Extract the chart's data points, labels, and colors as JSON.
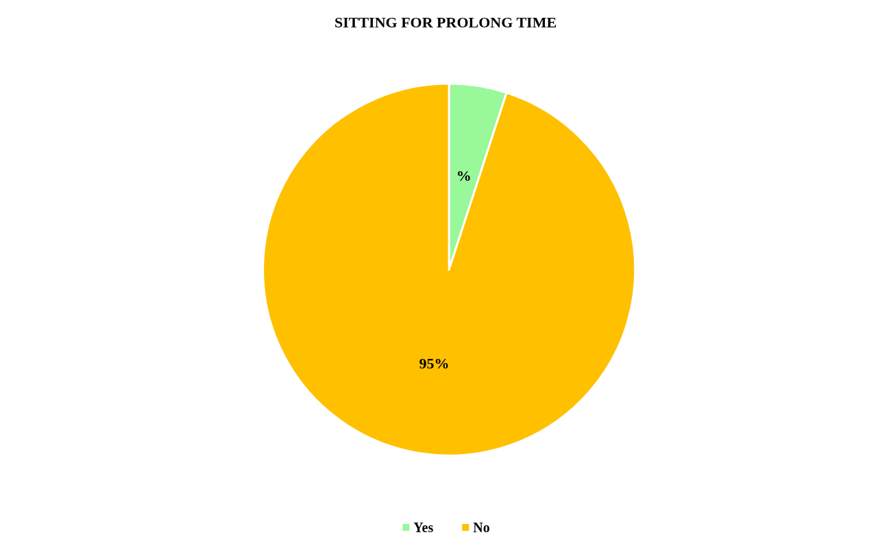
{
  "chart_data": {
    "type": "pie",
    "title": "SITTING FOR PROLONG TIME",
    "categories": [
      "Yes",
      "No"
    ],
    "values": [
      5,
      95
    ],
    "colors": [
      "#99f89a",
      "#ffc000"
    ],
    "value_labels": [
      "%",
      "95%"
    ],
    "legend": "bottom"
  }
}
